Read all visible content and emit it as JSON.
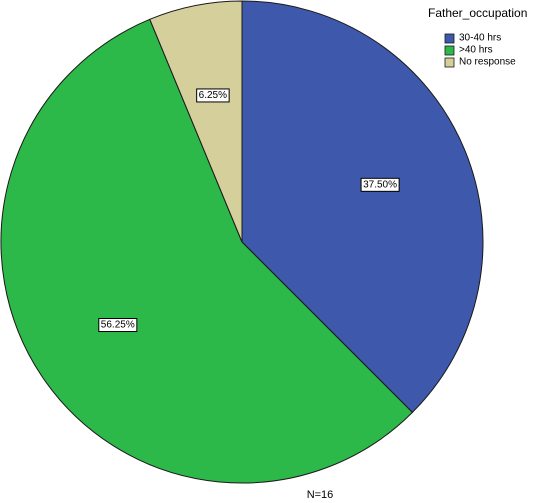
{
  "chart_data": {
    "type": "pie",
    "categories": [
      "30-40 hrs",
      ">40 hrs",
      "No response"
    ],
    "values": [
      37.5,
      56.25,
      6.25
    ],
    "value_labels": [
      "37.50%",
      "56.25%",
      "6.25%"
    ],
    "colors": [
      "#3e58ab",
      "#2db84a",
      "#d5cf9b"
    ],
    "legend_title": "Father_occupation",
    "legend_position": "top-right",
    "start": "12 o'clock",
    "direction": "clockwise",
    "footnote": "N=16"
  }
}
